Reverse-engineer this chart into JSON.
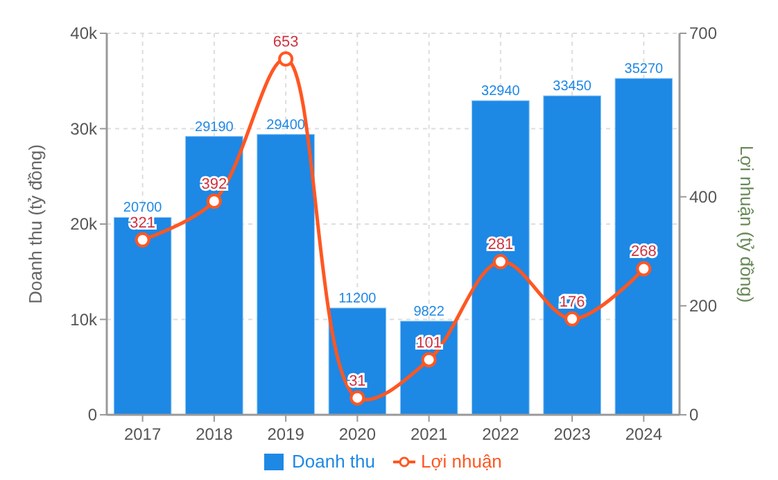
{
  "chart_data": {
    "type": "bar",
    "categories": [
      "2017",
      "2018",
      "2019",
      "2020",
      "2021",
      "2022",
      "2023",
      "2024"
    ],
    "series": [
      {
        "name": "Doanh thu",
        "color": "#1e88e5",
        "values": [
          20700,
          29190,
          29400,
          11200,
          9822,
          32940,
          33450,
          35270
        ]
      },
      {
        "name": "Lợi nhuận",
        "type": "line",
        "axis": "y2",
        "color": "#ff5722",
        "marker": "circle",
        "values": [
          321,
          392,
          653,
          31,
          101,
          281,
          176,
          268
        ]
      }
    ],
    "ylabel": "Doanh thu (tỷ đồng)",
    "y2label": "Lợi nhuận (tỷ đồng)",
    "ylim": [
      0,
      40000
    ],
    "yticks": [
      {
        "value": 0,
        "label": "0"
      },
      {
        "value": 10000,
        "label": "10k"
      },
      {
        "value": 20000,
        "label": "20k"
      },
      {
        "value": 30000,
        "label": "30k"
      },
      {
        "value": 40000,
        "label": "40k"
      }
    ],
    "y2lim": [
      0,
      700
    ],
    "y2ticks": [
      0,
      200,
      400,
      700
    ],
    "grid": true,
    "legend": "bottom",
    "data_labels": true
  }
}
